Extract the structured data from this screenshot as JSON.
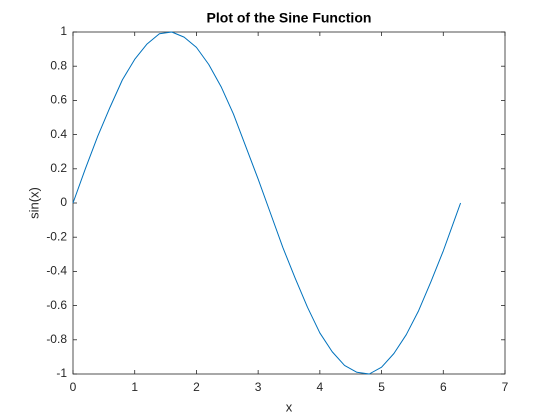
{
  "chart_data": {
    "type": "line",
    "title": "Plot of the Sine Function",
    "x_label": "x",
    "y_label": "sin(x)",
    "x": [
      0,
      0.2,
      0.4,
      0.6,
      0.8,
      1.0,
      1.2,
      1.4,
      1.6,
      1.8,
      2.0,
      2.2,
      2.4,
      2.6,
      2.8,
      3.0,
      3.2,
      3.4,
      3.6,
      3.8,
      4.0,
      4.2,
      4.4,
      4.6,
      4.8,
      5.0,
      5.2,
      5.4,
      5.6,
      5.8,
      6.0,
      6.2,
      6.28
    ],
    "series": [
      {
        "name": "sin(x)",
        "color": "#0072bd",
        "values": [
          0,
          0.2,
          0.39,
          0.56,
          0.72,
          0.84,
          0.93,
          0.99,
          1.0,
          0.97,
          0.91,
          0.81,
          0.68,
          0.52,
          0.33,
          0.14,
          -0.06,
          -0.26,
          -0.44,
          -0.61,
          -0.76,
          -0.87,
          -0.95,
          -0.99,
          -1.0,
          -0.96,
          -0.88,
          -0.77,
          -0.63,
          -0.46,
          -0.28,
          -0.08,
          0
        ]
      }
    ],
    "xlim": [
      0,
      7
    ],
    "xticks": [
      0,
      1,
      2,
      3,
      4,
      5,
      6,
      7
    ],
    "ylim": [
      -1,
      1
    ],
    "yticks": [
      -1,
      -0.8,
      -0.6,
      -0.4,
      -0.2,
      0,
      0.2,
      0.4,
      0.6,
      0.8,
      1
    ],
    "grid": false
  }
}
